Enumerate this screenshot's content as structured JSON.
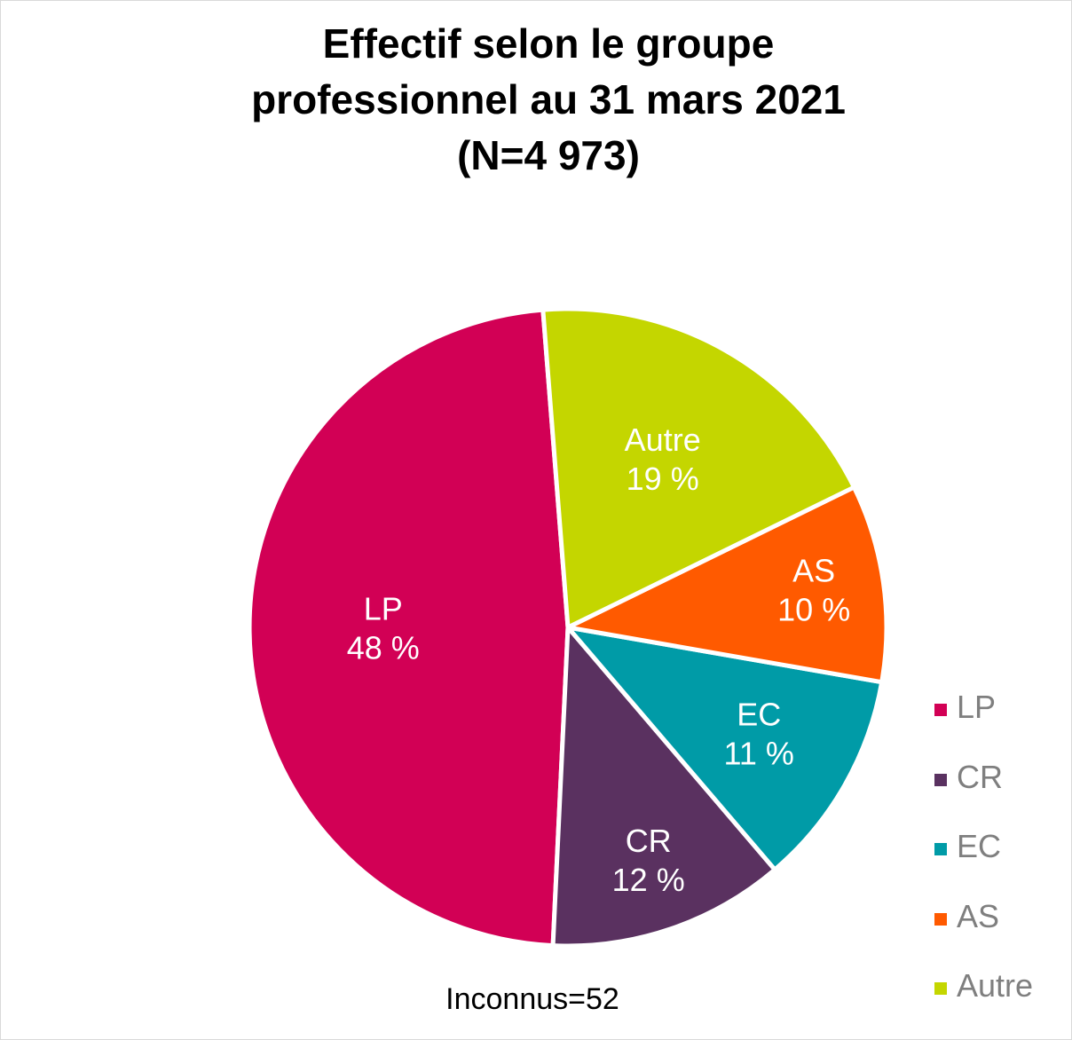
{
  "chart_data": {
    "type": "pie",
    "title": [
      "Effectif selon le groupe",
      "professionnel au 31 mars 2021",
      "(N=4 973)"
    ],
    "slices": [
      {
        "name": "LP",
        "value": 48,
        "label": "48 %",
        "color": "#d20055"
      },
      {
        "name": "CR",
        "value": 12,
        "label": "12 %",
        "color": "#5a3160"
      },
      {
        "name": "EC",
        "value": 11,
        "label": "11 %",
        "color": "#009ba7"
      },
      {
        "name": "AS",
        "value": 10,
        "label": "10 %",
        "color": "#ff5a00"
      },
      {
        "name": "Autre",
        "value": 19,
        "label": "19 %",
        "color": "#c4d600"
      }
    ],
    "legend_position": "right-bottom",
    "annotation": "Inconnus=52"
  }
}
